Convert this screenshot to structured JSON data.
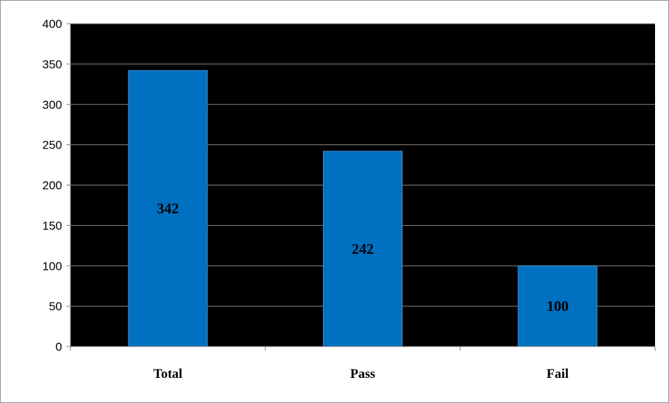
{
  "chart_data": {
    "type": "bar",
    "categories": [
      "Total",
      "Pass",
      "Fail"
    ],
    "values": [
      342,
      242,
      100
    ],
    "data_labels": [
      "342",
      "242",
      "100"
    ],
    "title": "",
    "xlabel": "",
    "ylabel": "",
    "ylim": [
      0,
      400
    ],
    "yticks": [
      0,
      50,
      100,
      150,
      200,
      250,
      300,
      350,
      400
    ],
    "ytick_labels": [
      "0",
      "50",
      "100",
      "150",
      "200",
      "250",
      "300",
      "350",
      "400"
    ],
    "grid": true,
    "legend": "none",
    "colors": {
      "plot_background": "#000000",
      "bar_fill": "#0070c0",
      "bar_edge": "#4a8fd0",
      "gridline": "#8a8a8a",
      "frame": "#8c8c8c"
    }
  }
}
